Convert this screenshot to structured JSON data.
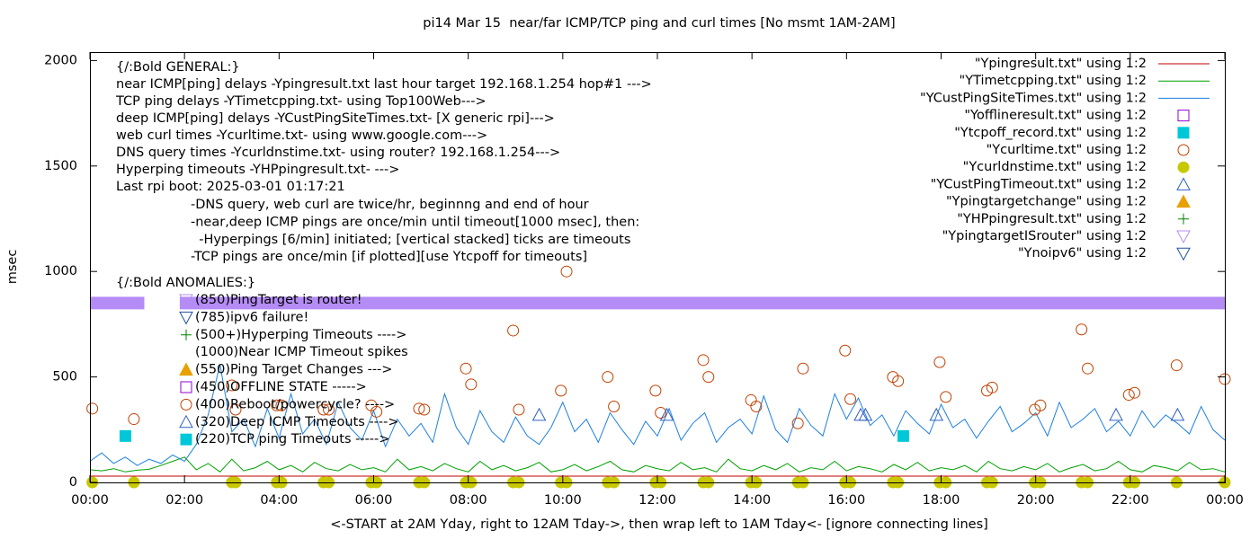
{
  "chart_data": {
    "type": "line",
    "title": "pi14 Mar 15  near/far ICMP/TCP ping and curl times [No msmt 1AM-2AM]",
    "xlabel": "<-START at 2AM Yday, right to 12AM Tday->, then wrap left to 1AM Tday<- [ignore connecting lines]",
    "ylabel": "msec",
    "xlim": [
      0,
      24
    ],
    "ylim": [
      0,
      2040
    ],
    "xticks": [
      {
        "value": 0,
        "label": "00:00"
      },
      {
        "value": 2,
        "label": "02:00"
      },
      {
        "value": 4,
        "label": "04:00"
      },
      {
        "value": 6,
        "label": "06:00"
      },
      {
        "value": 8,
        "label": "08:00"
      },
      {
        "value": 10,
        "label": "10:00"
      },
      {
        "value": 12,
        "label": "12:00"
      },
      {
        "value": 14,
        "label": "14:00"
      },
      {
        "value": 16,
        "label": "16:00"
      },
      {
        "value": 18,
        "label": "18:00"
      },
      {
        "value": 20,
        "label": "20:00"
      },
      {
        "value": 22,
        "label": "22:00"
      },
      {
        "value": 24,
        "label": "00:00"
      }
    ],
    "yticks": [
      0,
      500,
      1000,
      1500,
      2000
    ],
    "legend": "top-right",
    "annotations": {
      "general": [
        "{/:Bold GENERAL:}",
        "near ICMP[ping] delays -Ypingresult.txt last hour target 192.168.1.254 hop#1 --->",
        "TCP ping delays -YTimetcpping.txt- using Top100Web--->",
        "deep ICMP[ping] delays -YCustPingSiteTimes.txt- [X generic rpi]--->",
        "web curl times -Ycurltime.txt- using www.google.com--->",
        "DNS query times -Ycurldnstime.txt- using router? 192.168.1.254--->",
        "Hyperping timeouts -YHPpingresult.txt- --->",
        "Last rpi boot: 2025-03-01 01:17:21"
      ],
      "notes": [
        "-DNS query, web curl are twice/hr, beginnng and end of hour",
        "-near,deep ICMP pings are once/min until timeout[1000 msec], then:",
        "  -Hyperpings [6/min] initiated; [vertical stacked] ticks are timeouts",
        "-TCP pings are once/min [if plotted][use Ytcpoff for timeouts]"
      ],
      "anomalies_header": "{/:Bold ANOMALIES:}",
      "anomalies": [
        "(850)PingTarget is router!",
        "(785)ipv6 failure!",
        "(500+)Hyperping Timeouts ---->",
        "(1000)Near ICMP Timeout spikes",
        "(550)Ping Target Changes --->",
        "(450)OFFLINE STATE ----->",
        "(400)Reboot/powercycle? ---->",
        "(320)Deep ICMP Timeouts ---->",
        "(220)TCP ping Timeouts ----->"
      ]
    },
    "series": [
      {
        "name": "\"Ypingresult.txt\" using 1:2",
        "color": "#c00000",
        "style": "line",
        "x": [
          0,
          6,
          12,
          18,
          24
        ],
        "values": [
          30,
          30,
          30,
          30,
          30
        ]
      },
      {
        "name": "\"YTimetcpping.txt\" using 1:2",
        "color": "#00a000",
        "style": "line",
        "x": [
          0,
          0.25,
          0.5,
          0.75,
          1,
          1.25,
          1.5,
          1.75,
          2,
          2.25,
          2.5,
          2.75,
          3,
          3.25,
          3.5,
          3.75,
          4,
          4.25,
          4.5,
          4.75,
          5,
          5.25,
          5.5,
          5.75,
          6,
          6.25,
          6.5,
          6.75,
          7,
          7.25,
          7.5,
          7.75,
          8,
          8.25,
          8.5,
          8.75,
          9,
          9.25,
          9.5,
          9.75,
          10,
          10.25,
          10.5,
          10.75,
          11,
          11.25,
          11.5,
          11.75,
          12,
          12.25,
          12.5,
          12.75,
          13,
          13.25,
          13.5,
          13.75,
          14,
          14.25,
          14.5,
          14.75,
          15,
          15.25,
          15.5,
          15.75,
          16,
          16.25,
          16.5,
          16.75,
          17,
          17.25,
          17.5,
          17.75,
          18,
          18.25,
          18.5,
          18.75,
          19,
          19.25,
          19.5,
          19.75,
          20,
          20.25,
          20.5,
          20.75,
          21,
          21.25,
          21.5,
          21.75,
          22,
          22.25,
          22.5,
          22.75,
          23,
          23.25,
          23.5,
          23.75,
          24
        ],
        "values": [
          60,
          55,
          65,
          50,
          58,
          62,
          80,
          100,
          120,
          60,
          90,
          50,
          110,
          55,
          70,
          100,
          60,
          80,
          50,
          95,
          65,
          55,
          85,
          60,
          70,
          50,
          110,
          60,
          75,
          55,
          90,
          65,
          50,
          100,
          60,
          80,
          55,
          70,
          95,
          50,
          60,
          85,
          55,
          75,
          100,
          60,
          50,
          80,
          65,
          55,
          95,
          60,
          70,
          50,
          110,
          65,
          55,
          80,
          60,
          90,
          50,
          70,
          60,
          100,
          55,
          75,
          65,
          50,
          85,
          60,
          95,
          55,
          70,
          60,
          80,
          50,
          100,
          65,
          55,
          75,
          60,
          90,
          50,
          70,
          85,
          55,
          65,
          100,
          60,
          50,
          80,
          70,
          55,
          95,
          60,
          65,
          50
        ]
      },
      {
        "name": "\"YCustPingSiteTimes.txt\" using 1:2",
        "color": "#1e80e0",
        "style": "line",
        "x": [
          0,
          0.25,
          0.5,
          0.75,
          1,
          1.25,
          1.5,
          1.75,
          2,
          2.25,
          2.5,
          2.75,
          3,
          3.25,
          3.5,
          3.75,
          4,
          4.25,
          4.5,
          4.75,
          5,
          5.25,
          5.5,
          5.75,
          6,
          6.25,
          6.5,
          6.75,
          7,
          7.25,
          7.5,
          7.75,
          8,
          8.25,
          8.5,
          8.75,
          9,
          9.25,
          9.5,
          9.75,
          10,
          10.25,
          10.5,
          10.75,
          11,
          11.25,
          11.5,
          11.75,
          12,
          12.25,
          12.5,
          12.75,
          13,
          13.25,
          13.5,
          13.75,
          14,
          14.25,
          14.5,
          14.75,
          15,
          15.25,
          15.5,
          15.75,
          16,
          16.25,
          16.5,
          16.75,
          17,
          17.25,
          17.5,
          17.75,
          18,
          18.25,
          18.5,
          18.75,
          19,
          19.25,
          19.5,
          19.75,
          20,
          20.25,
          20.5,
          20.75,
          21,
          21.25,
          21.5,
          21.75,
          22,
          22.25,
          22.5,
          22.75,
          23,
          23.25,
          23.5,
          23.75,
          24
        ],
        "values": [
          100,
          140,
          90,
          120,
          80,
          110,
          90,
          130,
          100,
          180,
          320,
          560,
          240,
          300,
          170,
          350,
          210,
          420,
          230,
          300,
          180,
          380,
          260,
          200,
          340,
          170,
          300,
          220,
          280,
          190,
          420,
          260,
          180,
          340,
          240,
          190,
          310,
          220,
          180,
          260,
          380,
          240,
          300,
          190,
          330,
          250,
          180,
          290,
          220,
          350,
          200,
          280,
          330,
          190,
          260,
          300,
          230,
          410,
          250,
          190,
          350,
          270,
          220,
          420,
          300,
          400,
          270,
          320,
          220,
          340,
          280,
          230,
          370,
          260,
          300,
          210,
          290,
          360,
          240,
          280,
          330,
          220,
          380,
          260,
          300,
          350,
          240,
          290,
          220,
          340,
          260,
          320,
          280,
          230,
          360,
          250,
          200
        ]
      },
      {
        "name": "\"Yofflineresult.txt\" using 1:2",
        "color": "#9400d3",
        "style": "square",
        "x": [],
        "values": []
      },
      {
        "name": "\"Ytcpoff_record.txt\" using 1:2",
        "color": "#00c8d8",
        "style": "square-filled",
        "x": [
          0.75,
          17.2
        ],
        "values": [
          220,
          220
        ]
      },
      {
        "name": "\"Ycurltime.txt\" using 1:2",
        "color": "#c04000",
        "style": "circle",
        "x": [
          0.05,
          0.93,
          3.0,
          3.08,
          3.95,
          4.05,
          4.94,
          5.05,
          5.95,
          6.06,
          6.96,
          7.07,
          7.95,
          8.06,
          8.95,
          9.07,
          9.96,
          10.08,
          10.95,
          11.08,
          11.96,
          12.07,
          12.97,
          13.08,
          13.98,
          14.09,
          14.97,
          15.08,
          15.97,
          16.08,
          16.98,
          17.09,
          17.97,
          18.1,
          18.97,
          19.08,
          19.98,
          20.1,
          20.97,
          21.1,
          21.97,
          22.09,
          22.98,
          24
        ],
        "values": [
          350,
          300,
          460,
          345,
          365,
          365,
          345,
          345,
          365,
          335,
          350,
          345,
          540,
          465,
          720,
          345,
          435,
          1000,
          500,
          360,
          435,
          330,
          580,
          500,
          390,
          360,
          280,
          540,
          625,
          395,
          500,
          480,
          570,
          405,
          435,
          450,
          345,
          365,
          725,
          540,
          415,
          425,
          555,
          490
        ]
      },
      {
        "name": "\"Ycurldnstime.txt\" using 1:2",
        "color": "#c8c800",
        "style": "circle-filled",
        "x": [
          0.05,
          0.93,
          3.0,
          3.08,
          3.95,
          4.05,
          4.94,
          5.05,
          5.95,
          6.06,
          6.96,
          7.07,
          7.95,
          8.06,
          8.95,
          9.07,
          9.96,
          10.08,
          10.95,
          11.08,
          11.96,
          12.07,
          12.97,
          13.08,
          13.98,
          14.09,
          14.97,
          15.08,
          15.97,
          16.08,
          16.98,
          17.09,
          17.97,
          18.1,
          18.97,
          19.08,
          19.98,
          20.1,
          20.97,
          21.1,
          21.97,
          22.09,
          22.98,
          24
        ],
        "values": [
          0,
          0,
          0,
          0,
          0,
          0,
          0,
          0,
          0,
          0,
          0,
          0,
          0,
          0,
          0,
          0,
          0,
          0,
          0,
          0,
          0,
          0,
          0,
          0,
          0,
          0,
          0,
          0,
          0,
          0,
          0,
          0,
          0,
          0,
          0,
          0,
          0,
          0,
          0,
          0,
          0,
          0,
          0,
          0
        ]
      },
      {
        "name": "\"YCustPingTimeout.txt\" using 1:2",
        "color": "#3060c0",
        "style": "triangle",
        "x": [
          9.5,
          12.2,
          16.3,
          16.4,
          17.9,
          21.7,
          23.0
        ],
        "values": [
          320,
          320,
          320,
          320,
          320,
          320,
          320
        ]
      },
      {
        "name": "\"Ypingtargetchange\" using 1:2",
        "color": "#e8a000",
        "style": "triangle-filled",
        "x": [],
        "values": []
      },
      {
        "name": "\"YHPpingresult.txt\" using 1:2",
        "color": "#008000",
        "style": "plus",
        "x": [],
        "values": []
      },
      {
        "name": "\"YpingtargetISrouter\" using 1:2",
        "color": "#b58cf6",
        "style": "band",
        "x": [
          0,
          1.15,
          1.5,
          1.9,
          24
        ],
        "values": [
          850,
          850,
          null,
          850,
          850
        ]
      },
      {
        "name": "\"Ynoipv6\" using 1:2",
        "color": "#2050a0",
        "style": "triangle-down",
        "x": [],
        "values": []
      }
    ]
  }
}
